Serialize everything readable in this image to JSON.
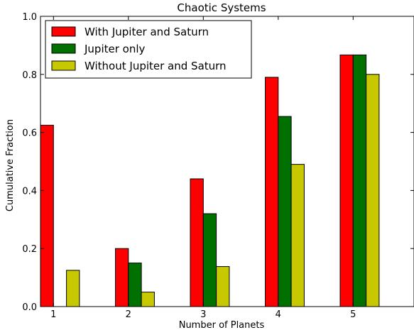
{
  "chart_data": {
    "type": "bar",
    "title": "Chaotic Systems",
    "xlabel": "Number of Planets",
    "ylabel": "Cumulative Fraction",
    "categories": [
      "1",
      "2",
      "3",
      "4",
      "5"
    ],
    "ylim": [
      0.0,
      1.0
    ],
    "yticks": [
      "0.0",
      "0.2",
      "0.4",
      "0.6",
      "0.8",
      "1.0"
    ],
    "grid": false,
    "legend_position": "top-left",
    "series": [
      {
        "name": "With Jupiter and Saturn",
        "color": "#ff0000",
        "values": [
          0.625,
          0.2,
          0.44,
          0.79,
          0.867
        ]
      },
      {
        "name": "Jupiter only",
        "color": "#007000",
        "values": [
          0.0,
          0.15,
          0.32,
          0.655,
          0.867
        ]
      },
      {
        "name": "Without Jupiter and Saturn",
        "color": "#c8c800",
        "values": [
          0.125,
          0.05,
          0.138,
          0.49,
          0.8
        ]
      }
    ]
  }
}
